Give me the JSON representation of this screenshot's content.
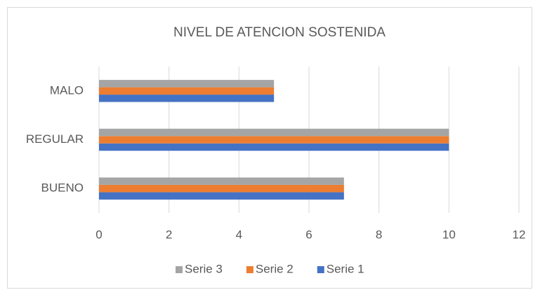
{
  "chart_data": {
    "type": "hbar",
    "title": "NIVEL DE ATENCION SOSTENIDA",
    "categories": [
      "BUENO",
      "REGULAR",
      "MALO"
    ],
    "series": [
      {
        "name": "Serie 1",
        "color": "#4472c4",
        "values": [
          7,
          10,
          5
        ]
      },
      {
        "name": "Serie 2",
        "color": "#ed7d31",
        "values": [
          7,
          10,
          5
        ]
      },
      {
        "name": "Serie 3",
        "color": "#a5a5a5",
        "values": [
          7,
          10,
          5
        ]
      }
    ],
    "xlim": [
      0,
      12
    ],
    "xticks": [
      0,
      2,
      4,
      6,
      8,
      10,
      12
    ],
    "grid": true,
    "legend": "bottom"
  }
}
